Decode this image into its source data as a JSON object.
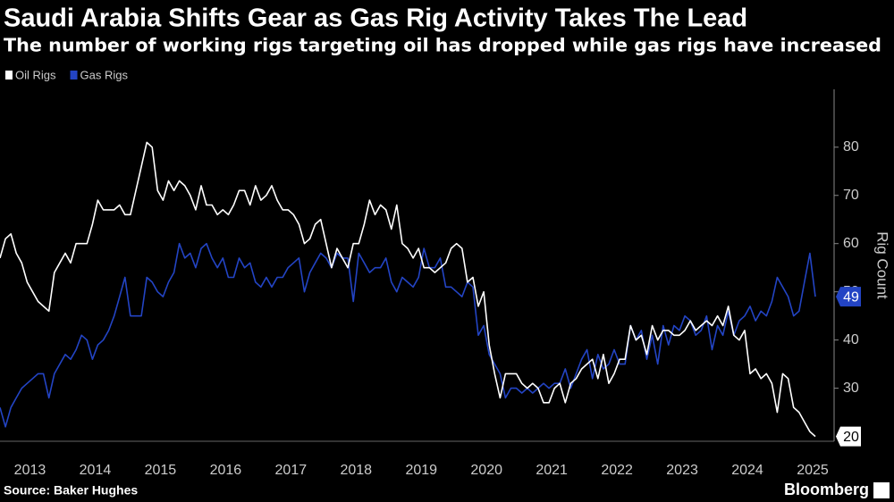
{
  "chart_data": {
    "type": "line",
    "title": "Saudi Arabia Shifts Gear as Gas Rig Activity Takes The Lead",
    "subtitle": "The number of working rigs targeting oil has dropped while gas rigs have increased",
    "y_axis_label": "Rig Count",
    "source": "Source: Baker Hughes",
    "brand": "Bloomberg",
    "categories": [
      null,
      null,
      null,
      null,
      null,
      null,
      "2013",
      null,
      null,
      null,
      null,
      null,
      null,
      null,
      null,
      null,
      null,
      null,
      "2014",
      null,
      null,
      null,
      null,
      null,
      null,
      null,
      null,
      null,
      null,
      null,
      "2015",
      null,
      null,
      null,
      null,
      null,
      null,
      null,
      null,
      null,
      null,
      null,
      "2016",
      null,
      null,
      null,
      null,
      null,
      null,
      null,
      null,
      null,
      null,
      null,
      "2017",
      null,
      null,
      null,
      null,
      null,
      null,
      null,
      null,
      null,
      null,
      null,
      "2018",
      null,
      null,
      null,
      null,
      null,
      null,
      null,
      null,
      null,
      null,
      null,
      "2019",
      null,
      null,
      null,
      null,
      null,
      null,
      null,
      null,
      null,
      null,
      null,
      "2020",
      null,
      null,
      null,
      null,
      null,
      null,
      null,
      null,
      null,
      null,
      null,
      "2021",
      null,
      null,
      null,
      null,
      null,
      null,
      null,
      null,
      null,
      null,
      null,
      "2022",
      null,
      null,
      null,
      null,
      null,
      null,
      null,
      null,
      null,
      null,
      null,
      "2023",
      null,
      null,
      null,
      null,
      null,
      null,
      null,
      null,
      null,
      null,
      null,
      "2024",
      null,
      null,
      null,
      null,
      null,
      null,
      null,
      null,
      null,
      null,
      null,
      "2025"
    ],
    "series": [
      {
        "name": "Oil Rigs",
        "color": "#ffffff",
        "values": [
          57,
          61,
          62,
          58,
          56,
          52,
          50,
          48,
          47,
          46,
          54,
          56,
          58,
          56,
          60,
          60,
          60,
          64,
          69,
          67,
          67,
          67,
          68,
          66,
          66,
          71,
          76,
          81,
          80,
          71,
          69,
          73,
          71,
          73,
          72,
          70,
          67,
          72,
          68,
          68,
          66,
          67,
          66,
          68,
          71,
          71,
          68,
          72,
          69,
          70,
          72,
          69,
          67,
          67,
          66,
          64,
          60,
          61,
          64,
          65,
          60,
          55,
          59,
          57,
          55,
          60,
          60,
          64,
          69,
          66,
          68,
          67,
          63,
          68,
          60,
          59,
          57,
          59,
          55,
          55,
          54,
          55,
          56,
          59,
          60,
          59,
          52,
          53,
          47,
          50,
          39,
          33,
          28,
          33,
          33,
          33,
          31,
          30,
          31,
          30,
          27,
          27,
          30,
          31,
          27,
          31,
          32,
          34,
          35,
          36,
          32,
          37,
          31,
          33,
          36,
          36,
          43,
          40,
          41,
          37,
          43,
          40,
          42,
          42,
          41,
          41,
          42,
          44,
          42,
          43,
          44,
          43,
          45,
          43,
          47,
          41,
          40,
          42,
          33,
          34,
          32,
          33,
          31,
          25,
          33,
          32,
          26,
          25,
          23,
          21,
          20
        ]
      },
      {
        "name": "Gas Rigs",
        "color": "#2344c4",
        "values": [
          26,
          22,
          26,
          28,
          30,
          31,
          32,
          33,
          33,
          28,
          33,
          35,
          37,
          36,
          38,
          41,
          40,
          36,
          39,
          40,
          42,
          45,
          49,
          53,
          45,
          45,
          45,
          53,
          52,
          50,
          49,
          52,
          54,
          60,
          57,
          58,
          55,
          59,
          60,
          57,
          55,
          57,
          53,
          53,
          57,
          55,
          56,
          52,
          51,
          53,
          51,
          53,
          53,
          55,
          56,
          57,
          50,
          54,
          56,
          58,
          57,
          55,
          58,
          57,
          57,
          48,
          58,
          56,
          54,
          55,
          55,
          57,
          52,
          50,
          53,
          52,
          51,
          53,
          59,
          55,
          55,
          57,
          51,
          51,
          50,
          49,
          52,
          51,
          41,
          43,
          37,
          35,
          33,
          28,
          30,
          30,
          29,
          30,
          29,
          30,
          31,
          30,
          31,
          31,
          34,
          30,
          33,
          36,
          38,
          32,
          37,
          34,
          35,
          38,
          35,
          35,
          43,
          40,
          42,
          36,
          41,
          35,
          43,
          39,
          43,
          42,
          45,
          44,
          41,
          42,
          45,
          38,
          43,
          41,
          46,
          41,
          44,
          45,
          47,
          44,
          46,
          45,
          48,
          53,
          51,
          49,
          45,
          46,
          52,
          58,
          49
        ]
      }
    ],
    "ylim": [
      19,
      92
    ],
    "yticks": [
      30,
      40,
      50,
      60,
      70,
      80
    ],
    "legend": "top-left"
  }
}
